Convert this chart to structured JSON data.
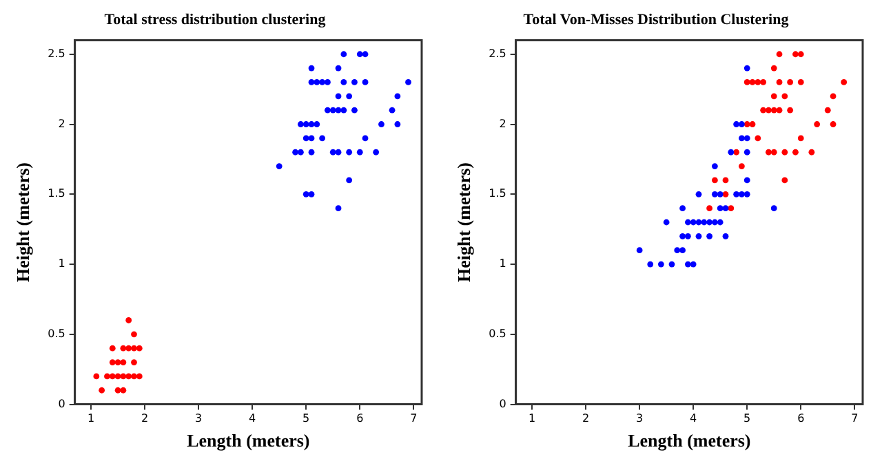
{
  "chart_data": [
    {
      "type": "scatter",
      "title": "Total stress distribution clustering",
      "xlabel": "Length (meters)",
      "ylabel": "Height (meters)",
      "xlim": [
        0.7,
        7.15
      ],
      "ylim": [
        0,
        2.6
      ],
      "xticks": [
        1,
        2,
        3,
        4,
        5,
        6,
        7
      ],
      "yticks": [
        0,
        0.5,
        1,
        1.5,
        2,
        2.5
      ],
      "grid": false,
      "legend": false,
      "marker": "circle",
      "series": [
        {
          "color": "#ff0000",
          "x": [
            1.7,
            1.8,
            1.4,
            1.6,
            1.7,
            1.8,
            1.9,
            1.4,
            1.5,
            1.6,
            1.8,
            1.1,
            1.3,
            1.4,
            1.5,
            1.6,
            1.7,
            1.8,
            1.9,
            1.2,
            1.5,
            1.6
          ],
          "values": [
            0.6,
            0.5,
            0.4,
            0.4,
            0.4,
            0.4,
            0.4,
            0.3,
            0.3,
            0.3,
            0.3,
            0.2,
            0.2,
            0.2,
            0.2,
            0.2,
            0.2,
            0.2,
            0.2,
            0.1,
            0.1,
            0.1
          ]
        },
        {
          "color": "#0000ff",
          "x": [
            5.7,
            6.0,
            6.1,
            5.1,
            5.6,
            5.1,
            5.2,
            5.3,
            5.4,
            5.7,
            5.9,
            6.1,
            6.9,
            5.6,
            5.8,
            6.7,
            5.4,
            5.5,
            5.6,
            5.7,
            5.9,
            6.6,
            4.9,
            5.0,
            5.1,
            5.2,
            6.4,
            6.7,
            5.0,
            5.1,
            5.3,
            6.1,
            4.8,
            4.9,
            5.1,
            5.5,
            5.6,
            5.8,
            6.0,
            6.3,
            4.5,
            5.8,
            5.0,
            5.1,
            5.6
          ],
          "values": [
            2.5,
            2.5,
            2.5,
            2.4,
            2.4,
            2.3,
            2.3,
            2.3,
            2.3,
            2.3,
            2.3,
            2.3,
            2.3,
            2.2,
            2.2,
            2.2,
            2.1,
            2.1,
            2.1,
            2.1,
            2.1,
            2.1,
            2.0,
            2.0,
            2.0,
            2.0,
            2.0,
            2.0,
            1.9,
            1.9,
            1.9,
            1.9,
            1.8,
            1.8,
            1.8,
            1.8,
            1.8,
            1.8,
            1.8,
            1.8,
            1.7,
            1.6,
            1.5,
            1.5,
            1.4
          ]
        }
      ]
    },
    {
      "type": "scatter",
      "title": "Total Von-Misses Distribution Clustering",
      "xlabel": "Length (meters)",
      "ylabel": "Height (meters)",
      "xlim": [
        0.7,
        7.15
      ],
      "ylim": [
        0,
        2.6
      ],
      "xticks": [
        1,
        2,
        3,
        4,
        5,
        6,
        7
      ],
      "yticks": [
        0,
        0.5,
        1,
        1.5,
        2,
        2.5
      ],
      "grid": false,
      "legend": false,
      "marker": "circle",
      "series": [
        {
          "color": "#0000ff",
          "x": [
            5.0,
            4.8,
            4.9,
            4.9,
            5.0,
            4.7,
            5.0,
            4.4,
            5.0,
            4.1,
            4.4,
            4.5,
            4.8,
            4.9,
            5.0,
            3.8,
            4.5,
            4.6,
            5.5,
            3.5,
            3.9,
            4.0,
            4.1,
            4.2,
            4.3,
            4.4,
            4.5,
            3.8,
            3.9,
            4.1,
            4.3,
            4.6,
            3.0,
            3.7,
            3.8,
            3.2,
            3.4,
            3.6,
            3.9,
            4.0
          ],
          "values": [
            2.4,
            2.0,
            2.0,
            1.9,
            1.9,
            1.8,
            1.8,
            1.7,
            1.6,
            1.5,
            1.5,
            1.5,
            1.5,
            1.5,
            1.5,
            1.4,
            1.4,
            1.4,
            1.4,
            1.3,
            1.3,
            1.3,
            1.3,
            1.3,
            1.3,
            1.3,
            1.3,
            1.2,
            1.2,
            1.2,
            1.2,
            1.2,
            1.1,
            1.1,
            1.1,
            1.0,
            1.0,
            1.0,
            1.0,
            1.0
          ]
        },
        {
          "color": "#ff0000",
          "x": [
            5.6,
            5.9,
            6.0,
            5.5,
            5.0,
            5.1,
            5.2,
            5.3,
            5.6,
            5.8,
            6.0,
            6.8,
            5.5,
            5.7,
            6.6,
            5.3,
            5.4,
            5.5,
            5.6,
            5.8,
            6.5,
            5.0,
            5.1,
            6.3,
            6.6,
            5.2,
            6.0,
            4.8,
            5.4,
            5.5,
            5.7,
            5.9,
            6.2,
            4.9,
            4.4,
            4.6,
            5.7,
            4.6,
            4.3,
            4.7
          ],
          "values": [
            2.5,
            2.5,
            2.5,
            2.4,
            2.3,
            2.3,
            2.3,
            2.3,
            2.3,
            2.3,
            2.3,
            2.3,
            2.2,
            2.2,
            2.2,
            2.1,
            2.1,
            2.1,
            2.1,
            2.1,
            2.1,
            2.0,
            2.0,
            2.0,
            2.0,
            1.9,
            1.9,
            1.8,
            1.8,
            1.8,
            1.8,
            1.8,
            1.8,
            1.7,
            1.6,
            1.6,
            1.6,
            1.5,
            1.4,
            1.4
          ]
        }
      ]
    }
  ]
}
